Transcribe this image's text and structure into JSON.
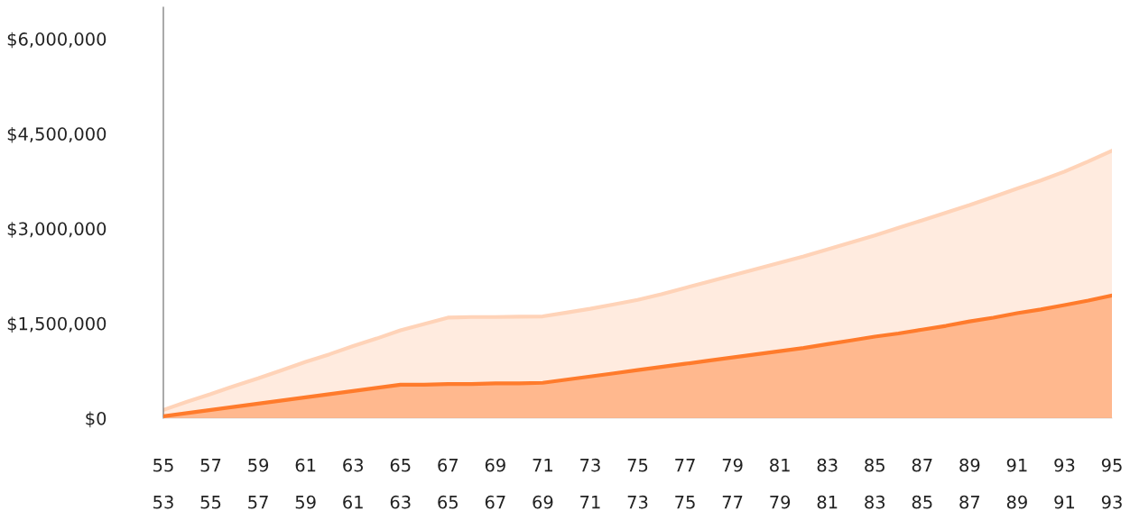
{
  "chart_data": {
    "type": "area",
    "x": [
      55,
      56,
      57,
      58,
      59,
      60,
      61,
      62,
      63,
      64,
      65,
      66,
      67,
      68,
      69,
      70,
      71,
      72,
      73,
      74,
      75,
      76,
      77,
      78,
      79,
      80,
      81,
      82,
      83,
      84,
      85,
      86,
      87,
      88,
      89,
      90,
      91,
      92,
      93,
      94,
      95
    ],
    "series": [
      {
        "color": "#ffd3b8",
        "values": [
          130000,
          260000,
          380000,
          510000,
          630000,
          760000,
          890000,
          1010000,
          1140000,
          1260000,
          1390000,
          1490000,
          1590000,
          1600000,
          1600000,
          1605000,
          1610000,
          1670000,
          1730000,
          1800000,
          1870000,
          1960000,
          2060000,
          2160000,
          2260000,
          2360000,
          2460000,
          2560000,
          2670000,
          2780000,
          2890000,
          3010000,
          3130000,
          3250000,
          3370000,
          3500000,
          3630000,
          3760000,
          3900000,
          4060000,
          4230000
        ]
      },
      {
        "color": "#ff7b2c",
        "values": [
          30000,
          80000,
          130000,
          180000,
          230000,
          280000,
          330000,
          380000,
          430000,
          480000,
          530000,
          530000,
          540000,
          540000,
          550000,
          550000,
          560000,
          610000,
          660000,
          710000,
          760000,
          810000,
          860000,
          910000,
          960000,
          1010000,
          1060000,
          1110000,
          1170000,
          1230000,
          1290000,
          1340000,
          1400000,
          1460000,
          1530000,
          1590000,
          1660000,
          1720000,
          1790000,
          1860000,
          1940000
        ]
      }
    ],
    "xlim": [
      55,
      95
    ],
    "xticks": [
      55,
      57,
      59,
      61,
      63,
      65,
      67,
      69,
      71,
      73,
      75,
      77,
      79,
      81,
      83,
      85,
      87,
      89,
      91,
      93,
      95
    ],
    "x2lim": [
      53,
      93
    ],
    "x2ticks": [
      53,
      55,
      57,
      59,
      61,
      63,
      65,
      67,
      69,
      71,
      73,
      75,
      77,
      79,
      81,
      83,
      85,
      87,
      89,
      91,
      93
    ],
    "ylim": [
      0,
      6500000
    ],
    "yticks": [
      {
        "value": 0,
        "label": "$0"
      },
      {
        "value": 1500000,
        "label": "$1,500,000"
      },
      {
        "value": 3000000,
        "label": "$3,000,000"
      },
      {
        "value": 4500000,
        "label": "$4,500,000"
      },
      {
        "value": 6000000,
        "label": "$6,000,000"
      }
    ],
    "grid": false,
    "legend": false
  }
}
